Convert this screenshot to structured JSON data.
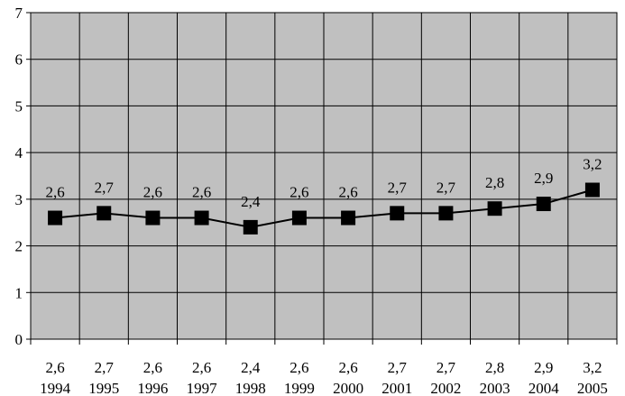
{
  "chart_data": {
    "type": "line",
    "title": "",
    "xlabel": "",
    "ylabel": "",
    "categories": [
      "1994",
      "1995",
      "1996",
      "1997",
      "1998",
      "1999",
      "2000",
      "2001",
      "2002",
      "2003",
      "2004",
      "2005"
    ],
    "category_value_labels": [
      "2,6",
      "2,7",
      "2,6",
      "2,6",
      "2,4",
      "2,6",
      "2,6",
      "2,7",
      "2,7",
      "2,8",
      "2,9",
      "3,2"
    ],
    "series": [
      {
        "values": [
          2.6,
          2.7,
          2.6,
          2.6,
          2.4,
          2.6,
          2.6,
          2.7,
          2.7,
          2.8,
          2.9,
          3.2
        ],
        "labels": [
          "2,6",
          "2,7",
          "2,6",
          "2,6",
          "2,4",
          "2,6",
          "2,6",
          "2,7",
          "2,7",
          "2,8",
          "2,9",
          "3,2"
        ]
      }
    ],
    "yticks": [
      "0",
      "1",
      "2",
      "3",
      "4",
      "5",
      "6",
      "7"
    ],
    "ylim": [
      0,
      7
    ],
    "grid": true,
    "legend": "none",
    "colors": {
      "plot_bg": "#c0c0c0",
      "line": "#000000",
      "marker": "#000000"
    }
  }
}
